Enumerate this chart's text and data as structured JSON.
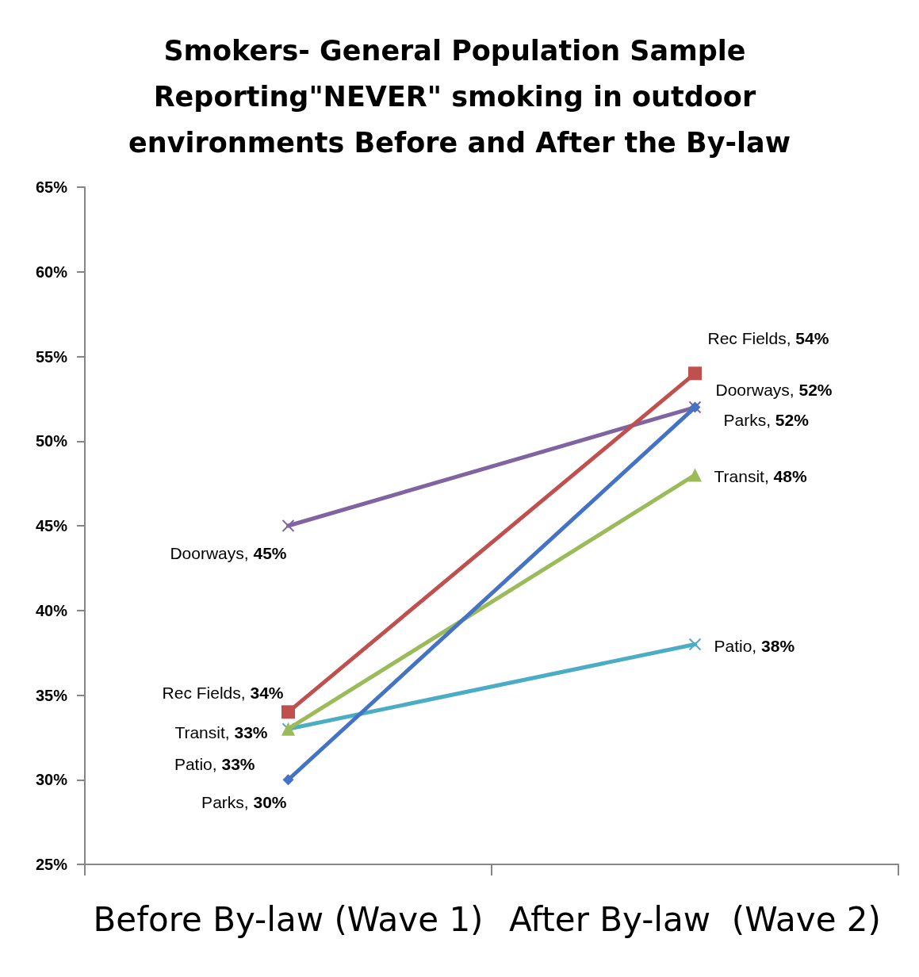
{
  "chart_data": {
    "type": "line",
    "title": "Smokers- General Population Sample Reporting\"NEVER\" smoking in outdoor environments Before and After the By-law",
    "categories": [
      "Before By-law (Wave 1)",
      "After By-law  (Wave 2)"
    ],
    "series": [
      {
        "color": "#4472c4",
        "marker": "diamond",
        "values": [
          30,
          52
        ],
        "value_labels": [
          "Parks, 30%",
          "Parks, 52%"
        ]
      },
      {
        "color": "#c0504d",
        "marker": "square",
        "values": [
          34,
          54
        ],
        "value_labels": [
          "Rec Fields, 34%",
          "Rec Fields, 54%"
        ]
      },
      {
        "color": "#9bbb59",
        "marker": "triangle",
        "values": [
          33,
          48
        ],
        "value_labels": [
          "Transit, 33%",
          "Transit, 48%"
        ]
      },
      {
        "color": "#4bacc6",
        "marker": "cross",
        "values": [
          33,
          38
        ],
        "value_labels": [
          "Patio, 33%",
          "Patio, 38%"
        ]
      },
      {
        "color": "#8064a2",
        "marker": "cross",
        "values": [
          45,
          52
        ],
        "value_labels": [
          "Doorways, 45%",
          "Doorways, 52%"
        ]
      }
    ],
    "ylim": [
      25,
      65
    ],
    "yticks": [
      {
        "value": 25,
        "label": "25%"
      },
      {
        "value": 30,
        "label": "30%"
      },
      {
        "value": 35,
        "label": "35%"
      },
      {
        "value": 40,
        "label": "40%"
      },
      {
        "value": 45,
        "label": "45%"
      },
      {
        "value": 50,
        "label": "50%"
      },
      {
        "value": 55,
        "label": "55%"
      },
      {
        "value": 60,
        "label": "60%"
      },
      {
        "value": 65,
        "label": "65%"
      }
    ],
    "grid": false,
    "line_style": "solid"
  }
}
